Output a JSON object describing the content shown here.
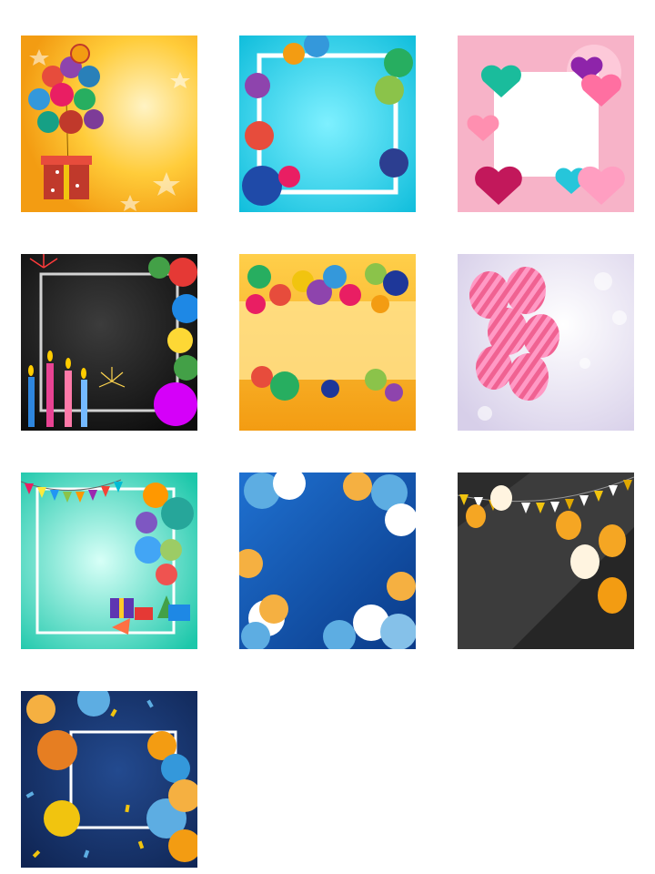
{
  "gallery": {
    "tiles": [
      {
        "id": "t1",
        "theme": "gift-box-balloons",
        "colors": {
          "bg1": "#f7a51b",
          "bg2": "#ffd35a"
        }
      },
      {
        "id": "t2",
        "theme": "cyan-frame-balloons",
        "colors": {
          "bg1": "#15c6de",
          "bg2": "#6be6f4"
        }
      },
      {
        "id": "t3",
        "theme": "pink-heart-balloons",
        "colors": {
          "bg1": "#f7b3c8",
          "bg2": "#ffd6e2"
        }
      },
      {
        "id": "t4",
        "theme": "black-candles-fireworks",
        "colors": {
          "bg1": "#0e0e0e",
          "bg2": "#3a3a3a"
        }
      },
      {
        "id": "t5",
        "theme": "orange-banner-balloons",
        "colors": {
          "bg1": "#f6a21a",
          "bg2": "#ffd45e"
        }
      },
      {
        "id": "t6",
        "theme": "pink-striped-balloons-bokeh",
        "colors": {
          "bg1": "#d9d4ea",
          "bg2": "#f3f0f7"
        }
      },
      {
        "id": "t7",
        "theme": "mint-bunting-gifts",
        "colors": {
          "bg1": "#1fcfb4",
          "bg2": "#c6fff0"
        }
      },
      {
        "id": "t8",
        "theme": "blue-gold-balloons",
        "colors": {
          "bg1": "#0f4ea8",
          "bg2": "#1f71d1"
        }
      },
      {
        "id": "t9",
        "theme": "dark-gold-bunting",
        "colors": {
          "bg1": "#2a2a2a",
          "bg2": "#4a4a4a"
        }
      },
      {
        "id": "t10",
        "theme": "navy-frame-confetti",
        "colors": {
          "bg1": "#132a5a",
          "bg2": "#1f3d7b"
        }
      }
    ]
  }
}
